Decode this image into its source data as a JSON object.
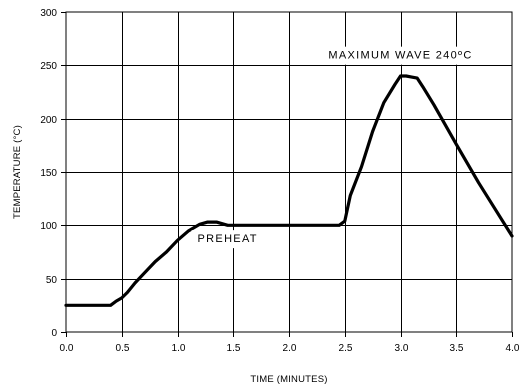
{
  "chart_data": {
    "type": "line",
    "xlabel": "TIME (MINUTES)",
    "ylabel": "TEMPERATURE (°C)",
    "xlim": [
      0,
      4
    ],
    "ylim": [
      0,
      300
    ],
    "x_ticks": [
      0,
      0.5,
      1,
      1.5,
      2,
      2.5,
      3,
      3.5,
      4
    ],
    "x_tick_labels": [
      "0.0",
      "0.5",
      "1.0",
      "1.5",
      "2.0",
      "2.5",
      "3.0",
      "3.5",
      "4.0"
    ],
    "y_ticks": [
      0,
      50,
      100,
      150,
      200,
      250,
      300
    ],
    "y_tick_labels": [
      "0",
      "50",
      "100",
      "150",
      "200",
      "250",
      "300"
    ],
    "grid": true,
    "series": [
      {
        "x": [
          0,
          0.2,
          0.4,
          0.45,
          0.5,
          0.55,
          0.62,
          0.7,
          0.8,
          0.9,
          1.0,
          1.1,
          1.2,
          1.27,
          1.35,
          1.45,
          1.6,
          2.0,
          2.4,
          2.45,
          2.5,
          2.55,
          2.65,
          2.75,
          2.85,
          2.95,
          3.0,
          3.05,
          3.1,
          3.15,
          3.2,
          3.3,
          3.5,
          3.7,
          4.0
        ],
        "y": [
          25,
          25,
          25,
          29,
          32,
          37,
          46,
          55,
          66,
          75,
          86,
          95,
          101,
          103,
          103,
          100,
          100,
          100,
          100,
          100,
          104,
          128,
          155,
          188,
          215,
          232,
          240,
          240,
          239,
          238,
          230,
          213,
          176,
          140,
          90
        ]
      }
    ],
    "annotations": [
      {
        "text": "MAXIMUM WAVE 240ºC",
        "x": 3.0,
        "y": 260
      },
      {
        "text": "PREHEAT",
        "x": 1.45,
        "y": 88
      }
    ]
  }
}
